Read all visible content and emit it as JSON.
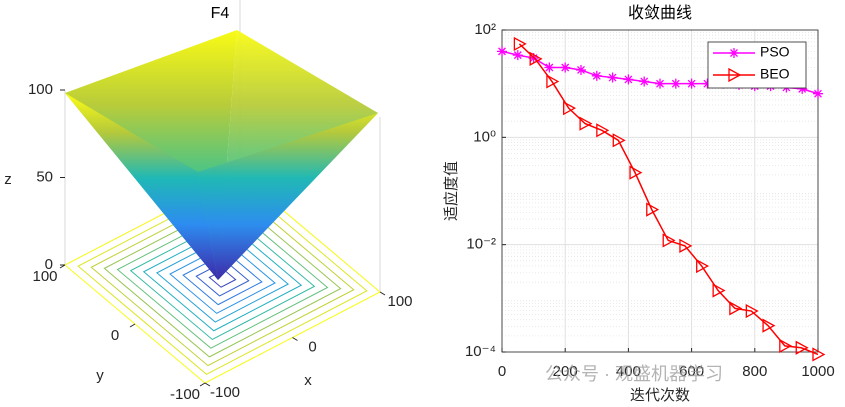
{
  "chart_data": [
    {
      "type": "surface3d",
      "title": "F4",
      "xlabel": "x",
      "ylabel": "y",
      "zlabel": "z",
      "xlim": [
        -100,
        100
      ],
      "ylim": [
        -100,
        100
      ],
      "zlim": [
        0,
        100
      ],
      "xticks": [
        -100,
        0,
        100
      ],
      "yticks": [
        -100,
        0,
        100
      ],
      "zticks": [
        0,
        50,
        100
      ]
    },
    {
      "type": "line",
      "title": "收敛曲线",
      "xlabel": "迭代次数",
      "ylabel": "适应度值",
      "xlim": [
        0,
        1000
      ],
      "xticks": [
        0,
        200,
        400,
        600,
        800,
        1000
      ],
      "ylim": [
        0.0001,
        100
      ],
      "yscale": "log",
      "yticks": [
        {
          "value": 0.0001,
          "label": "10⁻⁴"
        },
        {
          "value": 0.01,
          "label": "10⁻²"
        },
        {
          "value": 1,
          "label": "10⁰"
        },
        {
          "value": 100,
          "label": "10²"
        }
      ],
      "grid": true,
      "legend": "upper right",
      "annotation": "公众号 · 观盛机器学习",
      "series": [
        {
          "name": "PSO",
          "color": "#ff00ff",
          "marker": "asterisk",
          "x": [
            0,
            50,
            100,
            150,
            200,
            250,
            300,
            350,
            400,
            450,
            500,
            550,
            600,
            650,
            700,
            750,
            800,
            850,
            900,
            950,
            1000
          ],
          "values": [
            40,
            34,
            30,
            20,
            20,
            18,
            14,
            13,
            12,
            11,
            10,
            10,
            10,
            10,
            10,
            9.5,
            9,
            9,
            8.5,
            8,
            6.5
          ]
        },
        {
          "name": "BEO",
          "color": "#ff0000",
          "marker": "triangle-right",
          "x": [
            55,
            105,
            158,
            211,
            263,
            316,
            368,
            421,
            474,
            526,
            579,
            632,
            684,
            737,
            789,
            842,
            895,
            947,
            1000
          ],
          "values": [
            55,
            29,
            11,
            3.5,
            1.8,
            1.35,
            0.88,
            0.22,
            0.045,
            0.012,
            0.0095,
            0.004,
            0.0014,
            0.00065,
            0.00058,
            0.00031,
            0.00013,
            0.00012,
            9e-05
          ]
        }
      ]
    }
  ]
}
